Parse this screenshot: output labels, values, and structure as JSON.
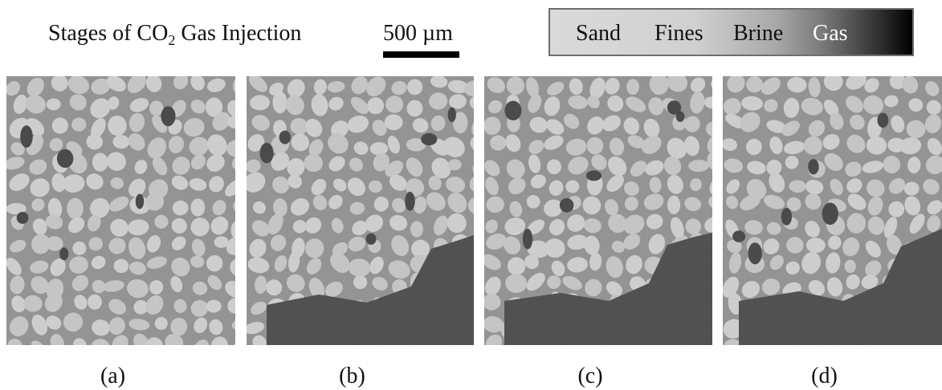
{
  "header": {
    "title_parts": [
      "Stages of CO",
      "2",
      " Gas Injection"
    ],
    "scale_bar": "500 µm"
  },
  "legend": {
    "labels": [
      "Sand",
      "Fines",
      "Brine",
      "Gas"
    ]
  },
  "panels": [
    {
      "label": "(a)"
    },
    {
      "label": "(b)"
    },
    {
      "label": "(c)"
    },
    {
      "label": "(d)"
    }
  ]
}
